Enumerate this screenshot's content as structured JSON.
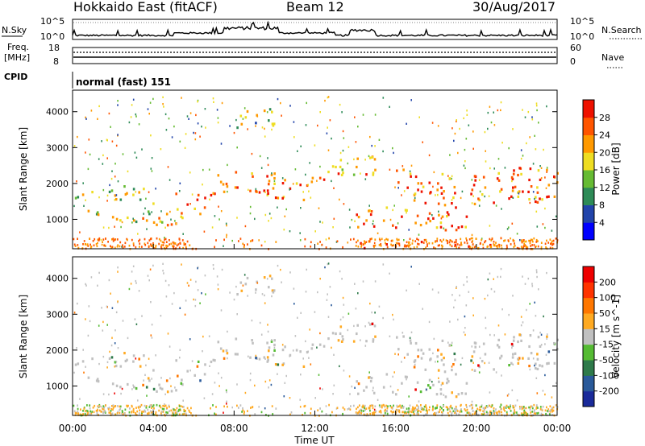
{
  "header": {
    "radar": "Hokkaido East (fitACF)",
    "beam": "Beam 12",
    "date": "30/Aug/2017"
  },
  "noise_panel": {
    "left_label": "N.Sky",
    "right_label": "N.Search",
    "tick_top": "10^5",
    "tick_bottom": "10^0"
  },
  "freq_panel": {
    "left_label_1": "Freq.",
    "left_label_2": "[MHz]",
    "right_label": "Nave",
    "left_ticks": [
      "18",
      "8"
    ],
    "right_ticks": [
      "60",
      "0"
    ]
  },
  "cpid_panel": {
    "label": "CPID",
    "mode": "normal (fast) 151"
  },
  "time_axis": {
    "title": "Time UT",
    "ticks": [
      "00:00",
      "04:00",
      "08:00",
      "12:00",
      "16:00",
      "20:00",
      "00:00"
    ]
  },
  "power_panel": {
    "ylabel": "Slant Range [km]",
    "yticks": [
      "4000",
      "3000",
      "2000",
      "1000"
    ],
    "colorbar_label": "Power [dB]",
    "colorbar_ticks": [
      "28",
      "24",
      "20",
      "16",
      "12",
      "8",
      "4"
    ],
    "colors": [
      "#0000ff",
      "#2244aa",
      "#2e8b57",
      "#66bb33",
      "#eedd22",
      "#ff9900",
      "#ff5500",
      "#ee1100"
    ]
  },
  "velocity_panel": {
    "ylabel": "Slant Range [km]",
    "yticks": [
      "4000",
      "3000",
      "2000",
      "1000"
    ],
    "colorbar_label": "Velocity [m s^-1]",
    "colorbar_ticks": [
      "200",
      "100",
      "50",
      "15",
      "-15",
      "-50",
      "-100",
      "-200"
    ],
    "colors": [
      "#1a2a9a",
      "#2a5a9a",
      "#2e7a4a",
      "#55bb33",
      "#c0c0c0",
      "#ffaa22",
      "#ff7700",
      "#ff3300",
      "#ee0000"
    ]
  },
  "chart_data": [
    {
      "type": "line",
      "title": "N.Sky / N.Search",
      "x_range_hours": [
        0,
        24
      ],
      "y_scale": "log",
      "ylim": [
        "10^0",
        "10^5"
      ],
      "description_values": "background noise trace low with enhancement near 08:00-10:00 and 14:00-15:00"
    },
    {
      "type": "line",
      "title": "Freq. [MHz] / Nave",
      "x_range_hours": [
        0,
        24
      ],
      "ylim_left": [
        8,
        18
      ],
      "ylim_right": [
        0,
        60
      ],
      "frequency_mhz": 10.5,
      "nave": 40
    },
    {
      "type": "heatmap",
      "title": "Power [dB]",
      "x_range_hours": [
        0,
        24
      ],
      "ylim_km": [
        180,
        4600
      ],
      "zlim_db": [
        0,
        30
      ],
      "bands": [
        {
          "t": [
            0.0,
            5.5
          ],
          "range_km": [
            900,
            1300
          ],
          "dominant_db": 20
        },
        {
          "t": [
            0.0,
            4.5
          ],
          "range_km": [
            1500,
            1900
          ],
          "dominant_db": 16
        },
        {
          "t": [
            5.0,
            7.0
          ],
          "range_km": [
            1200,
            1900
          ],
          "dominant_db": 26
        },
        {
          "t": [
            7.0,
            12.0
          ],
          "range_km": [
            1600,
            2300
          ],
          "dominant_db": 24
        },
        {
          "t": [
            8.0,
            10.0
          ],
          "range_km": [
            3500,
            4100
          ],
          "dominant_db": 16
        },
        {
          "t": [
            12.0,
            15.0
          ],
          "range_km": [
            2200,
            2800
          ],
          "dominant_db": 24
        },
        {
          "t": [
            14.0,
            19.5
          ],
          "range_km": [
            700,
            1300
          ],
          "dominant_db": 26
        },
        {
          "t": [
            16.0,
            24.0
          ],
          "range_km": [
            1400,
            2400
          ],
          "dominant_db": 26
        },
        {
          "t": [
            14.0,
            21.0
          ],
          "range_km": [
            200,
            400
          ],
          "dominant_db": 28
        }
      ]
    },
    {
      "type": "heatmap",
      "title": "Velocity [m s^-1]",
      "x_range_hours": [
        0,
        24
      ],
      "ylim_km": [
        180,
        4600
      ],
      "zlim_ms": [
        -200,
        200
      ],
      "dominant_value_ms": 0
    }
  ]
}
